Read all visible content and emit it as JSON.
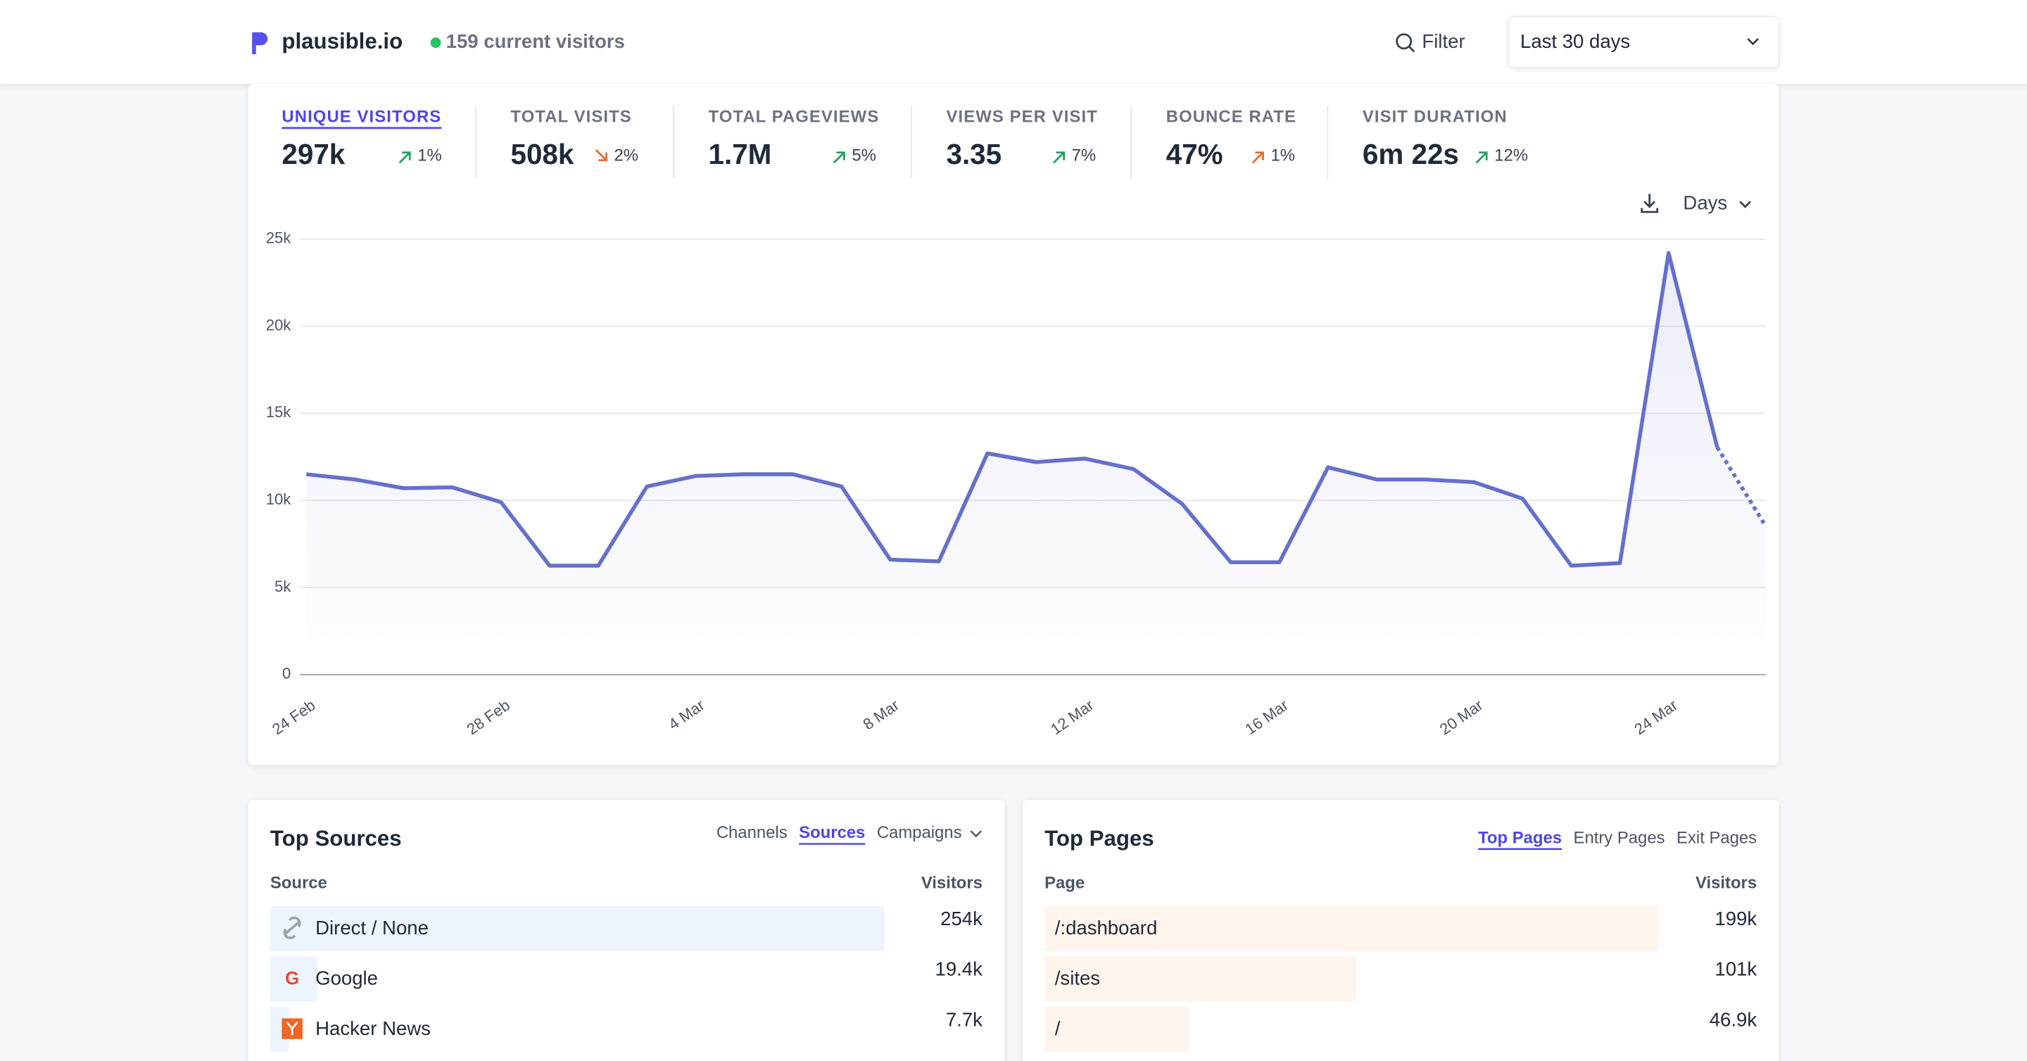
{
  "header": {
    "site": "plausible.io",
    "current_visitors": "159 current visitors",
    "filter": "Filter",
    "period": "Last 30 days"
  },
  "selected_metric": 0,
  "metrics": [
    {
      "label": "UNIQUE VISITORS",
      "value": "297k",
      "change": "1%",
      "trend": "up",
      "color": "#22a05a"
    },
    {
      "label": "TOTAL VISITS",
      "value": "508k",
      "change": "2%",
      "trend": "down",
      "color": "#e8692c"
    },
    {
      "label": "TOTAL PAGEVIEWS",
      "value": "1.7M",
      "change": "5%",
      "trend": "up",
      "color": "#22a05a"
    },
    {
      "label": "VIEWS PER VISIT",
      "value": "3.35",
      "change": "7%",
      "trend": "up",
      "color": "#22a05a"
    },
    {
      "label": "BOUNCE RATE",
      "value": "47%",
      "change": "1%",
      "trend": "up",
      "color": "#e8692c"
    },
    {
      "label": "VISIT DURATION",
      "value": "6m 22s",
      "change": "12%",
      "trend": "up",
      "color": "#22a05a"
    }
  ],
  "chart_data": {
    "type": "line",
    "interval": "Days",
    "categories": [
      "24 Feb",
      null,
      null,
      null,
      "28 Feb",
      null,
      null,
      null,
      "4 Mar",
      null,
      null,
      null,
      "8 Mar",
      null,
      null,
      null,
      "12 Mar",
      null,
      null,
      null,
      "16 Mar",
      null,
      null,
      null,
      "20 Mar",
      null,
      null,
      null,
      "24 Mar",
      null,
      null
    ],
    "series": [
      {
        "name": "Unique visitors",
        "color": "#6570cc",
        "values": [
          11500,
          11200,
          10700,
          10750,
          9900,
          6250,
          6250,
          10800,
          11400,
          11500,
          11500,
          10800,
          6600,
          6500,
          12700,
          12200,
          12400,
          11800,
          9800,
          6450,
          6450,
          11900,
          11200,
          11200,
          11050,
          10100,
          6250,
          6400,
          24200,
          13050,
          8500
        ]
      }
    ],
    "ylim": [
      0,
      25000
    ],
    "yticks": [
      0,
      {
        "value": 5000,
        "label": "5k"
      },
      {
        "value": 10000,
        "label": "10k"
      },
      {
        "value": 15000,
        "label": "15k"
      },
      {
        "value": 20000,
        "label": "20k"
      },
      {
        "value": 25000,
        "label": "25k"
      }
    ],
    "grid": true
  },
  "top_sources": {
    "title": "Top Sources",
    "tabs": [
      "Channels",
      "Sources",
      "Campaigns"
    ],
    "active_tab": 1,
    "columns": [
      "Source",
      "Visitors"
    ],
    "bar_color": "#eef4fd",
    "rows": [
      {
        "name": "Direct / None",
        "visitors": {
          "value": 254000,
          "label": "254k"
        }
      },
      {
        "name": "Google",
        "visitors": {
          "value": 19400,
          "label": "19.4k"
        }
      },
      {
        "name": "Hacker News",
        "visitors": {
          "value": 7700,
          "label": "7.7k"
        }
      }
    ]
  },
  "top_pages": {
    "title": "Top Pages",
    "tabs": [
      "Top Pages",
      "Entry Pages",
      "Exit Pages"
    ],
    "active_tab": 0,
    "columns": [
      "Page",
      "Visitors"
    ],
    "bar_color": "#fef6ec",
    "rows": [
      {
        "name": "/:dashboard",
        "visitors": {
          "value": 199000,
          "label": "199k"
        }
      },
      {
        "name": "/sites",
        "visitors": {
          "value": 101000,
          "label": "101k"
        }
      },
      {
        "name": "/",
        "visitors": {
          "value": 46900,
          "label": "46.9k"
        }
      }
    ]
  }
}
